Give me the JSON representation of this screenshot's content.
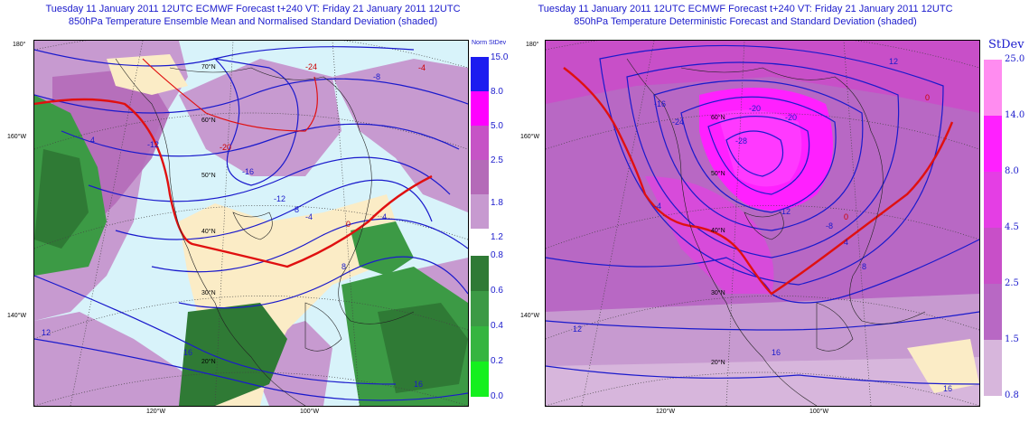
{
  "left": {
    "title_line1": "Tuesday 11 January 2011 12UTC ECMWF Forecast t+240  VT: Friday 21 January 2011 12UTC",
    "title_line2": "850hPa Temperature Ensemble Mean and Normalised Standard Deviation (shaded)",
    "legend_title": "Norm StDev",
    "legend_levels": [
      "15.0",
      "8.0",
      "5.0",
      "2.5",
      "1.8",
      "1.2",
      "0.8",
      "0.6",
      "0.4",
      "0.2",
      "0.0"
    ],
    "legend_colors": [
      "#1c1cf0",
      "#ff00ff",
      "#c653c6",
      "#b46ab8",
      "#c79ad0",
      "#2f7a35",
      "#3c9a45",
      "#35b540",
      "#2ad13a",
      "#14f01e"
    ]
  },
  "right": {
    "title_line1": "Tuesday 11 January 2011 12UTC ECMWF Forecast t+240  VT: Friday 21 January 2011 12UTC",
    "title_line2": "850hPa Temperature Deterministic Forecast and Standard Deviation (shaded)",
    "legend_title": "StDev",
    "legend_levels": [
      "25.0",
      "14.0",
      "8.0",
      "4.5",
      "2.5",
      "1.5",
      "0.8"
    ],
    "legend_colors": [
      "#ff8cf0",
      "#ff20ff",
      "#e43ee4",
      "#c84fc8",
      "#b868c4",
      "#d7b6dc"
    ]
  },
  "map_labels": {
    "lon_180": "180°",
    "lon_160w": "160°W",
    "lon_140w": "140°W",
    "lon_120w": "120°W",
    "lon_100w": "100°W",
    "lat_70n": "70°N",
    "lat_60n": "60°N",
    "lat_50n": "50°N",
    "lat_40n": "40°N",
    "lat_30n": "30°N",
    "lat_20n": "20°N"
  },
  "contour_labels_left": [
    "-24",
    "-20",
    "-16",
    "-12",
    "-8",
    "-4",
    "0",
    "4",
    "8",
    "12",
    "16",
    "16",
    "-12",
    "-8",
    "-4",
    "4"
  ],
  "contour_labels_right": [
    "-24",
    "-20",
    "-16",
    "-12",
    "-8",
    "-4",
    "0",
    "4",
    "8",
    "12",
    "16",
    "16",
    "-28",
    "-20",
    "12",
    "0"
  ]
}
